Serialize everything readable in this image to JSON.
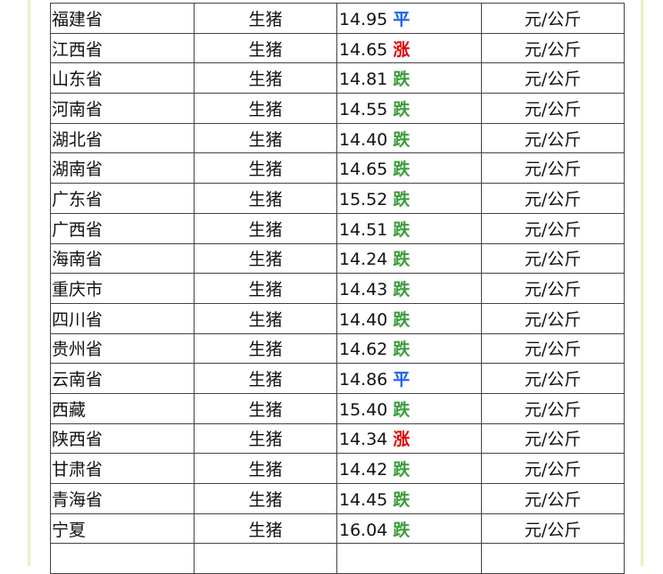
{
  "colors": {
    "平": "#1560f5",
    "涨": "#e60000",
    "跌": "#3c9d3c",
    "frame": "#e8f2c4"
  },
  "rows": [
    {
      "region": "福建省",
      "product": "生猪",
      "price": "14.95",
      "trend": "平",
      "unit": "元/公斤"
    },
    {
      "region": "江西省",
      "product": "生猪",
      "price": "14.65",
      "trend": "涨",
      "unit": "元/公斤"
    },
    {
      "region": "山东省",
      "product": "生猪",
      "price": "14.81",
      "trend": "跌",
      "unit": "元/公斤"
    },
    {
      "region": "河南省",
      "product": "生猪",
      "price": "14.55",
      "trend": "跌",
      "unit": "元/公斤"
    },
    {
      "region": "湖北省",
      "product": "生猪",
      "price": "14.40",
      "trend": "跌",
      "unit": "元/公斤"
    },
    {
      "region": "湖南省",
      "product": "生猪",
      "price": "14.65",
      "trend": "跌",
      "unit": "元/公斤"
    },
    {
      "region": "广东省",
      "product": "生猪",
      "price": "15.52",
      "trend": "跌",
      "unit": "元/公斤"
    },
    {
      "region": "广西省",
      "product": "生猪",
      "price": "14.51",
      "trend": "跌",
      "unit": "元/公斤"
    },
    {
      "region": "海南省",
      "product": "生猪",
      "price": "14.24",
      "trend": "跌",
      "unit": "元/公斤"
    },
    {
      "region": "重庆市",
      "product": "生猪",
      "price": "14.43",
      "trend": "跌",
      "unit": "元/公斤"
    },
    {
      "region": "四川省",
      "product": "生猪",
      "price": "14.40",
      "trend": "跌",
      "unit": "元/公斤"
    },
    {
      "region": "贵州省",
      "product": "生猪",
      "price": "14.62",
      "trend": "跌",
      "unit": "元/公斤"
    },
    {
      "region": "云南省",
      "product": "生猪",
      "price": "14.86",
      "trend": "平",
      "unit": "元/公斤"
    },
    {
      "region": "西藏",
      "product": "生猪",
      "price": "15.40",
      "trend": "跌",
      "unit": "元/公斤"
    },
    {
      "region": "陕西省",
      "product": "生猪",
      "price": "14.34",
      "trend": "涨",
      "unit": "元/公斤"
    },
    {
      "region": "甘肃省",
      "product": "生猪",
      "price": "14.42",
      "trend": "跌",
      "unit": "元/公斤"
    },
    {
      "region": "青海省",
      "product": "生猪",
      "price": "14.45",
      "trend": "跌",
      "unit": "元/公斤"
    },
    {
      "region": "宁夏",
      "product": "生猪",
      "price": "16.04",
      "trend": "跌",
      "unit": "元/公斤"
    }
  ]
}
